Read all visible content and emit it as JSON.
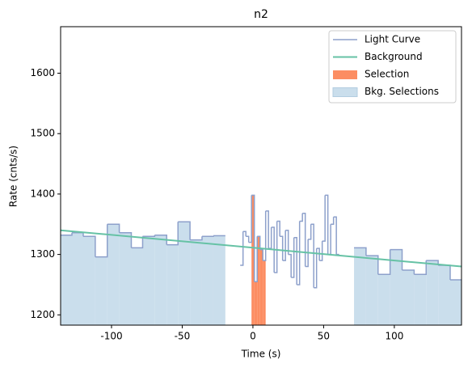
{
  "chart_data": {
    "type": "step",
    "title": "n2",
    "xlabel": "Time (s)",
    "ylabel": "Rate (cnts/s)",
    "xlim": [
      -136,
      147.5
    ],
    "ylim": [
      1183,
      1677
    ],
    "xticks": [
      -100,
      -50,
      0,
      50,
      100
    ],
    "yticks": [
      1200,
      1300,
      1400,
      1500,
      1600
    ],
    "legend": "upper right",
    "series": [
      {
        "name": "Light Curve",
        "color": "#8da0cb",
        "bins": [
          -136,
          -128,
          -120,
          -111.5,
          -103,
          -94.5,
          -86,
          -78,
          -69.5,
          -61,
          -53,
          -44.5,
          -36,
          -28,
          -19.5,
          -9,
          -7,
          -5,
          -3,
          -1,
          1,
          3,
          5,
          7,
          9,
          11,
          13,
          15,
          17,
          19,
          21,
          23,
          25,
          27,
          29,
          31,
          33,
          35,
          37,
          39,
          41,
          43,
          45,
          47,
          49,
          51,
          53,
          55,
          57,
          59,
          61,
          71.5,
          80,
          88.5,
          97,
          105.5,
          114,
          122.5,
          131,
          139.5,
          147.5
        ],
        "values": [
          1332,
          1336,
          1330,
          1296,
          1350,
          1336,
          1311,
          1330,
          1332,
          1316,
          1354,
          1324,
          1330,
          1331,
          null,
          1282,
          1338,
          1330,
          1320,
          1398,
          1255,
          1330,
          1308,
          1290,
          1372,
          1310,
          1345,
          1270,
          1355,
          1330,
          1290,
          1340,
          1300,
          1262,
          1328,
          1250,
          1355,
          1368,
          1280,
          1325,
          1350,
          1245,
          1310,
          1290,
          1322,
          1398,
          1300,
          1350,
          1362,
          1300,
          null,
          1311,
          1298,
          1267,
          1308,
          1274,
          1267,
          1290,
          1282,
          1258
        ]
      },
      {
        "name": "Background",
        "color": "#66c2a5",
        "x": [
          -136,
          147.5
        ],
        "values": [
          1340,
          1280
        ]
      },
      {
        "name": "Selection",
        "color": "#fc8d62",
        "range": [
          -1,
          9
        ]
      },
      {
        "name": "Bkg. Selections",
        "color": "#cadeec",
        "ranges": [
          [
            -136,
            -19.5
          ],
          [
            71.5,
            147.5
          ]
        ]
      }
    ]
  }
}
